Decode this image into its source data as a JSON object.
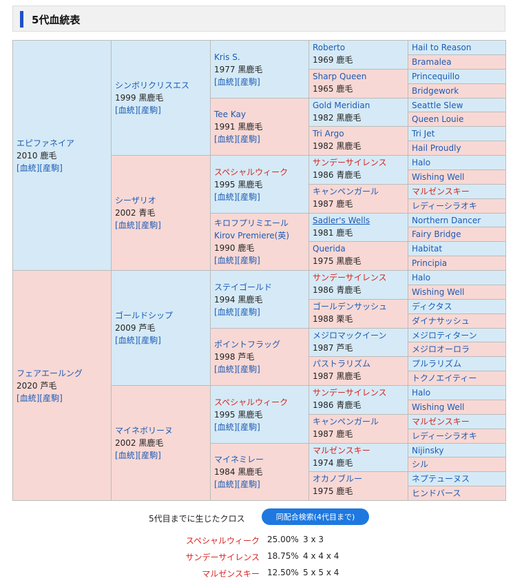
{
  "title": "5代血統表",
  "links": {
    "pedigree": "血統",
    "produce": "産駒"
  },
  "pedigree": {
    "g1": [
      {
        "name": "エピファネイア",
        "info": "2010 鹿毛"
      },
      {
        "name": "フェアエールング",
        "info": "2020 芦毛"
      }
    ],
    "g2": [
      {
        "name": "シンボリクリスエス",
        "info": "1999 黒鹿毛"
      },
      {
        "name": "シーザリオ",
        "info": "2002 青毛"
      },
      {
        "name": "ゴールドシップ",
        "info": "2009 芦毛"
      },
      {
        "name": "マイネボリーヌ",
        "info": "2002 黒鹿毛"
      }
    ],
    "g3": [
      {
        "name": "Kris S.",
        "info": "1977 黒鹿毛"
      },
      {
        "name": "Tee Kay",
        "info": "1991 黒鹿毛"
      },
      {
        "name": "スペシャルウィーク",
        "info": "1995 黒鹿毛"
      },
      {
        "name": "キロフプリミエール",
        "sub": "Kirov Premiere(英)",
        "info": "1990 鹿毛"
      },
      {
        "name": "ステイゴールド",
        "info": "1994 黒鹿毛"
      },
      {
        "name": "ポイントフラッグ",
        "info": "1998 芦毛"
      },
      {
        "name": "スペシャルウィーク",
        "info": "1995 黒鹿毛"
      },
      {
        "name": "マイネミレー",
        "info": "1984 黒鹿毛"
      }
    ],
    "g4": [
      {
        "name": "Roberto",
        "info": "1969 鹿毛"
      },
      {
        "name": "Sharp Queen",
        "info": "1965 鹿毛"
      },
      {
        "name": "Gold Meridian",
        "info": "1982 黒鹿毛"
      },
      {
        "name": "Tri Argo",
        "info": "1982 黒鹿毛"
      },
      {
        "name": "サンデーサイレンス",
        "info": "1986 青鹿毛"
      },
      {
        "name": "キャンペンガール",
        "info": "1987 鹿毛"
      },
      {
        "name": "Sadler's Wells",
        "info": "1981 鹿毛"
      },
      {
        "name": "Querida",
        "info": "1975 黒鹿毛"
      },
      {
        "name": "サンデーサイレンス",
        "info": "1986 青鹿毛"
      },
      {
        "name": "ゴールデンサッシュ",
        "info": "1988 栗毛"
      },
      {
        "name": "メジロマックイーン",
        "info": "1987 芦毛"
      },
      {
        "name": "パストラリズム",
        "info": "1987 黒鹿毛"
      },
      {
        "name": "サンデーサイレンス",
        "info": "1986 青鹿毛"
      },
      {
        "name": "キャンペンガール",
        "info": "1987 鹿毛"
      },
      {
        "name": "マルゼンスキー",
        "info": "1974 鹿毛"
      },
      {
        "name": "オカノブルー",
        "info": "1975 鹿毛"
      }
    ],
    "g5": [
      "Hail to Reason",
      "Bramalea",
      "Princequillo",
      "Bridgework",
      "Seattle Slew",
      "Queen Louie",
      "Tri Jet",
      "Hail Proudly",
      "Halo",
      "Wishing Well",
      "マルゼンスキー",
      "レディーシラオキ",
      "Northern Dancer",
      "Fairy Bridge",
      "Habitat",
      "Principia",
      "Halo",
      "Wishing Well",
      "ディクタス",
      "ダイナサッシュ",
      "メジロティターン",
      "メジロオーロラ",
      "プルラリズム",
      "トクノエイティー",
      "Halo",
      "Wishing Well",
      "マルゼンスキー",
      "レディーシラオキ",
      "Nijinsky",
      "シル",
      "ネプテューヌス",
      "ヒンドバース"
    ]
  },
  "crosses": {
    "label": "5代目までに生じたクロス",
    "search_button": "同配合検索(4代目まで)",
    "rows": [
      {
        "name": "スペシャルウィーク",
        "percent": "25.00%",
        "gens": "3 x 3"
      },
      {
        "name": "サンデーサイレンス",
        "percent": "18.75%",
        "gens": "4 x 4 x 4"
      },
      {
        "name": "マルゼンスキー",
        "percent": "12.50%",
        "gens": "5 x 5 x 4"
      }
    ]
  },
  "colors": {
    "sire": "#d5eaf6",
    "dam": "#f8d8d4",
    "link": "#1c5bb5",
    "cross": "#d8231f",
    "accent": "#1e50c8"
  }
}
